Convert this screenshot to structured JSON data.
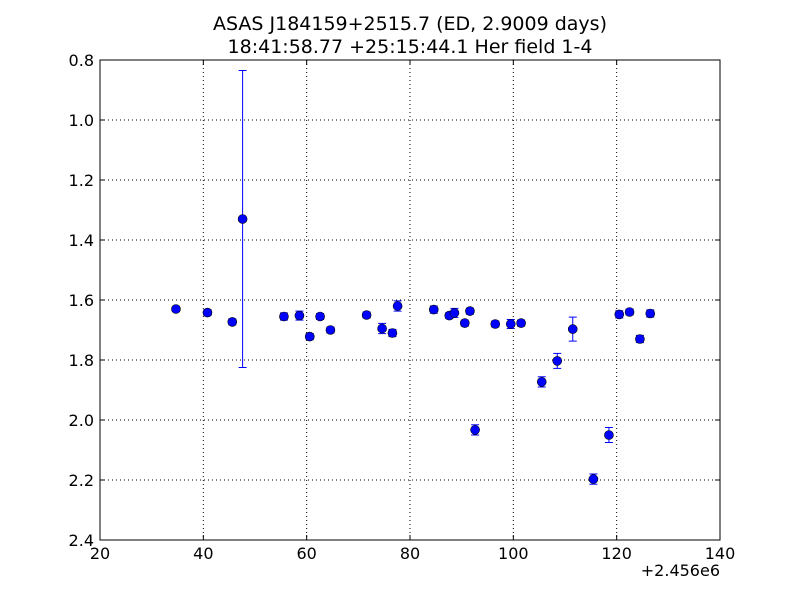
{
  "chart_data": {
    "type": "scatter",
    "title_line1": "ASAS J184159+2515.7 (ED, 2.9009 days)",
    "title_line2": "18:41:58.77 +25:15:44.1 Her field 1-4",
    "xlabel": "",
    "ylabel": "",
    "x_offset_label": "+2.456e6",
    "xlim": [
      20,
      140
    ],
    "ylim": [
      0.8,
      2.4
    ],
    "y_inverted": true,
    "grid": true,
    "x_ticks": [
      20,
      40,
      60,
      80,
      100,
      120,
      140
    ],
    "y_ticks": [
      0.8,
      1.0,
      1.2,
      1.4,
      1.6,
      1.8,
      2.0,
      2.2,
      2.4
    ],
    "x_tick_labels": [
      "20",
      "40",
      "60",
      "80",
      "100",
      "120",
      "140"
    ],
    "y_tick_labels": [
      "0.8",
      "1.0",
      "1.2",
      "1.4",
      "1.6",
      "1.8",
      "2.0",
      "2.2",
      "2.4"
    ],
    "marker_color": "#0000ff",
    "points": [
      {
        "x": 34.7,
        "y": 1.63,
        "err": 0.008
      },
      {
        "x": 40.8,
        "y": 1.642,
        "err": 0.01
      },
      {
        "x": 45.6,
        "y": 1.673,
        "err": 0.01
      },
      {
        "x": 47.6,
        "y": 1.33,
        "err": 0.495
      },
      {
        "x": 55.6,
        "y": 1.655,
        "err": 0.012
      },
      {
        "x": 58.6,
        "y": 1.652,
        "err": 0.015
      },
      {
        "x": 60.6,
        "y": 1.722,
        "err": 0.01
      },
      {
        "x": 62.6,
        "y": 1.655,
        "err": 0.01
      },
      {
        "x": 64.6,
        "y": 1.7,
        "err": 0.01
      },
      {
        "x": 71.6,
        "y": 1.65,
        "err": 0.01
      },
      {
        "x": 74.6,
        "y": 1.695,
        "err": 0.017
      },
      {
        "x": 76.6,
        "y": 1.71,
        "err": 0.012
      },
      {
        "x": 77.6,
        "y": 1.62,
        "err": 0.017
      },
      {
        "x": 84.6,
        "y": 1.632,
        "err": 0.012
      },
      {
        "x": 87.6,
        "y": 1.652,
        "err": 0.01
      },
      {
        "x": 88.6,
        "y": 1.643,
        "err": 0.015
      },
      {
        "x": 90.6,
        "y": 1.677,
        "err": 0.01
      },
      {
        "x": 91.6,
        "y": 1.637,
        "err": 0.01
      },
      {
        "x": 92.6,
        "y": 2.033,
        "err": 0.017
      },
      {
        "x": 96.5,
        "y": 1.68,
        "err": 0.01
      },
      {
        "x": 99.5,
        "y": 1.68,
        "err": 0.015
      },
      {
        "x": 101.5,
        "y": 1.677,
        "err": 0.01
      },
      {
        "x": 105.5,
        "y": 1.873,
        "err": 0.017
      },
      {
        "x": 108.5,
        "y": 1.803,
        "err": 0.025
      },
      {
        "x": 111.5,
        "y": 1.697,
        "err": 0.04
      },
      {
        "x": 115.5,
        "y": 2.197,
        "err": 0.017
      },
      {
        "x": 118.5,
        "y": 2.05,
        "err": 0.025
      },
      {
        "x": 120.5,
        "y": 1.648,
        "err": 0.012
      },
      {
        "x": 122.5,
        "y": 1.64,
        "err": 0.01
      },
      {
        "x": 124.5,
        "y": 1.73,
        "err": 0.012
      },
      {
        "x": 126.5,
        "y": 1.645,
        "err": 0.012
      }
    ]
  }
}
